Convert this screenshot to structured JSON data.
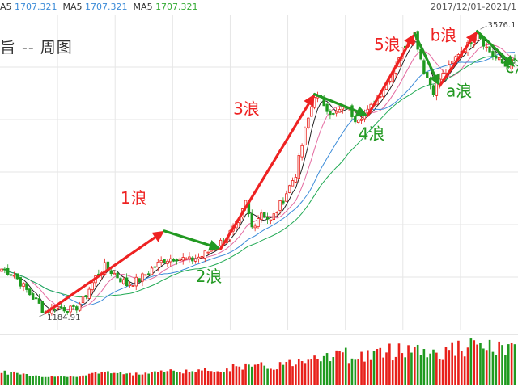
{
  "header": {
    "ma_prefix": "A5",
    "ma_prefix_val": "1707.321",
    "ma5_label": "MA5",
    "ma5_val": "1707.321",
    "ma5b_label": "MA5",
    "ma5b_val": "1707.321",
    "date_range": "2017/12/01-2021/1",
    "chart_title": "旨 --  周图"
  },
  "chart_data": {
    "type": "candlestick",
    "title": "",
    "price_labels": {
      "low": "1184.91",
      "high": "3576.1"
    },
    "extremes": [
      {
        "label": "1184.91",
        "week": 14,
        "price": 1184.91
      },
      {
        "label": "3576.1",
        "week": 153,
        "price": 3576.1
      }
    ],
    "ylim": [
      1050,
      3700
    ],
    "weeks": 165,
    "waves": [
      {
        "label": "1浪",
        "color": "#ee2222",
        "from": [
          14,
          1190
        ],
        "to": [
          52,
          1880
        ],
        "text_at": [
          38,
          2110
        ]
      },
      {
        "label": "2浪",
        "color": "#229922",
        "from": [
          52,
          1880
        ],
        "to": [
          70,
          1730
        ],
        "text_at": [
          62,
          1450
        ]
      },
      {
        "label": "3浪",
        "color": "#ee2222",
        "from": [
          70,
          1730
        ],
        "to": [
          100,
          3030
        ],
        "text_at": [
          74,
          2860
        ]
      },
      {
        "label": "4浪",
        "color": "#229922",
        "from": [
          100,
          3030
        ],
        "to": [
          117,
          2850
        ],
        "text_at": [
          114,
          2650
        ]
      },
      {
        "label": "5浪",
        "color": "#ee2222",
        "from": [
          117,
          2850
        ],
        "to": [
          132,
          3540
        ],
        "text_at": [
          119,
          3400
        ]
      },
      {
        "label": "a浪",
        "color": "#229922",
        "from": [
          132,
          3540
        ],
        "to": [
          140,
          3100
        ],
        "text_at": [
          142,
          3010
        ]
      },
      {
        "label": "b浪",
        "color": "#ee2222",
        "from": [
          140,
          3100
        ],
        "to": [
          152,
          3560
        ],
        "text_at": [
          137,
          3480
        ]
      },
      {
        "label": "c浪",
        "color": "#229922",
        "from": [
          152,
          3560
        ],
        "to": [
          164,
          3260
        ],
        "text_at": [
          161,
          3210
        ]
      }
    ],
    "anchors": [
      [
        0,
        1560
      ],
      [
        4,
        1510
      ],
      [
        8,
        1380
      ],
      [
        12,
        1260
      ],
      [
        14,
        1190
      ],
      [
        17,
        1240
      ],
      [
        20,
        1230
      ],
      [
        23,
        1210
      ],
      [
        26,
        1300
      ],
      [
        30,
        1490
      ],
      [
        33,
        1580
      ],
      [
        36,
        1520
      ],
      [
        40,
        1430
      ],
      [
        44,
        1470
      ],
      [
        48,
        1560
      ],
      [
        52,
        1640
      ],
      [
        56,
        1660
      ],
      [
        60,
        1630
      ],
      [
        64,
        1670
      ],
      [
        68,
        1740
      ],
      [
        72,
        1830
      ],
      [
        76,
        1960
      ],
      [
        78,
        2120
      ],
      [
        80,
        1910
      ],
      [
        83,
        2040
      ],
      [
        86,
        1960
      ],
      [
        90,
        2150
      ],
      [
        94,
        2360
      ],
      [
        97,
        2720
      ],
      [
        100,
        3030
      ],
      [
        103,
        2950
      ],
      [
        106,
        2850
      ],
      [
        110,
        2930
      ],
      [
        113,
        2830
      ],
      [
        117,
        2880
      ],
      [
        120,
        3000
      ],
      [
        124,
        3170
      ],
      [
        127,
        3350
      ],
      [
        130,
        3500
      ],
      [
        132,
        3540
      ],
      [
        135,
        3230
      ],
      [
        138,
        3060
      ],
      [
        140,
        3160
      ],
      [
        143,
        3250
      ],
      [
        146,
        3380
      ],
      [
        149,
        3440
      ],
      [
        152,
        3560
      ],
      [
        155,
        3420
      ],
      [
        158,
        3330
      ],
      [
        161,
        3270
      ],
      [
        164,
        3310
      ]
    ],
    "volume_note": "weekly volume bars, red up / green down"
  },
  "colors": {
    "up": "#e8201a",
    "down": "#1f9a1f",
    "ma_a": "#222222",
    "ma_b": "#e46aa0",
    "ma_c": "#3b8bd8",
    "ma_d": "#22aa55",
    "grid": "#e6e6e6"
  }
}
